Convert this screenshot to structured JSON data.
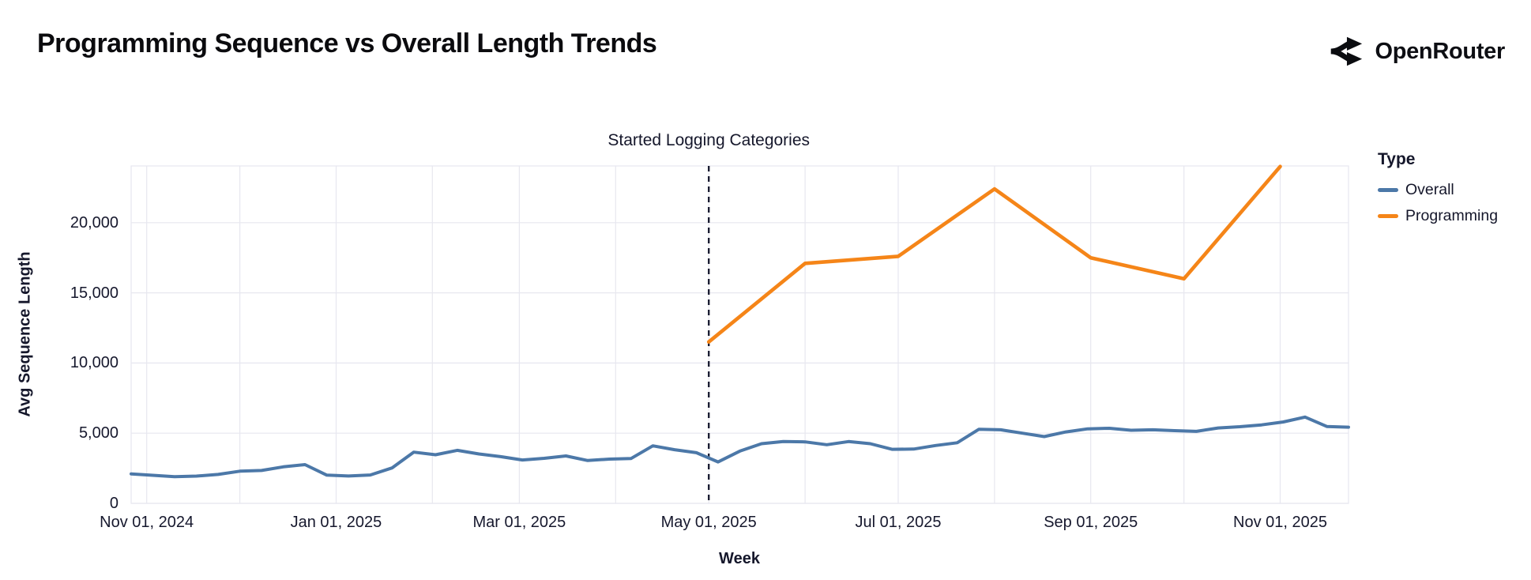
{
  "header": {
    "title": "Programming Sequence vs Overall Length Trends",
    "brand": {
      "name": "OpenRouter",
      "logo_icon": "openrouter-fork-icon"
    }
  },
  "chart_data": {
    "type": "line",
    "title": "Programming Sequence vs Overall Length Trends",
    "xlabel": "Week",
    "ylabel": "Avg Sequence Length",
    "x_domain": [
      "2024-10-27",
      "2025-11-23"
    ],
    "ylim": [
      0,
      24040
    ],
    "grid": true,
    "yticks": [
      {
        "value": 0,
        "label": "0"
      },
      {
        "value": 5000,
        "label": "5,000"
      },
      {
        "value": 10000,
        "label": "10,000"
      },
      {
        "value": 15000,
        "label": "15,000"
      },
      {
        "value": 20000,
        "label": "20,000"
      }
    ],
    "xticks": [
      {
        "date": "2024-11-01",
        "label": "Nov 01, 2024"
      },
      {
        "date": "2025-01-01",
        "label": "Jan 01, 2025"
      },
      {
        "date": "2025-03-01",
        "label": "Mar 01, 2025"
      },
      {
        "date": "2025-05-01",
        "label": "May 01, 2025"
      },
      {
        "date": "2025-07-01",
        "label": "Jul 01, 2025"
      },
      {
        "date": "2025-09-01",
        "label": "Sep 01, 2025"
      },
      {
        "date": "2025-11-01",
        "label": "Nov 01, 2025"
      }
    ],
    "month_gridlines": [
      "2024-11-01",
      "2024-12-01",
      "2025-01-01",
      "2025-02-01",
      "2025-03-01",
      "2025-04-01",
      "2025-05-01",
      "2025-06-01",
      "2025-07-01",
      "2025-08-01",
      "2025-09-01",
      "2025-10-01",
      "2025-11-01"
    ],
    "annotation": {
      "label": "Started Logging Categories",
      "date": "2025-05-01",
      "style": "dashed-vertical-rule",
      "rule_color": "#1c1e33"
    },
    "legend": {
      "title": "Type",
      "position": "right",
      "items": [
        {
          "label": "Overall",
          "color": "#4c78a8"
        },
        {
          "label": "Programming",
          "color": "#f58518"
        }
      ]
    },
    "series": [
      {
        "name": "Overall",
        "color": "#4c78a8",
        "x": [
          "2024-10-27",
          "2024-11-03",
          "2024-11-10",
          "2024-11-17",
          "2024-11-24",
          "2024-12-01",
          "2024-12-08",
          "2024-12-15",
          "2024-12-22",
          "2024-12-29",
          "2025-01-05",
          "2025-01-12",
          "2025-01-19",
          "2025-01-26",
          "2025-02-02",
          "2025-02-09",
          "2025-02-16",
          "2025-02-23",
          "2025-03-02",
          "2025-03-09",
          "2025-03-16",
          "2025-03-23",
          "2025-03-30",
          "2025-04-06",
          "2025-04-13",
          "2025-04-20",
          "2025-04-27",
          "2025-05-04",
          "2025-05-11",
          "2025-05-18",
          "2025-05-25",
          "2025-06-01",
          "2025-06-08",
          "2025-06-15",
          "2025-06-22",
          "2025-06-29",
          "2025-07-06",
          "2025-07-13",
          "2025-07-20",
          "2025-07-27",
          "2025-08-03",
          "2025-08-10",
          "2025-08-17",
          "2025-08-24",
          "2025-08-31",
          "2025-09-07",
          "2025-09-14",
          "2025-09-21",
          "2025-09-28",
          "2025-10-05",
          "2025-10-12",
          "2025-10-19",
          "2025-10-26",
          "2025-11-02",
          "2025-11-09",
          "2025-11-16",
          "2025-11-23"
        ],
        "values": [
          2100,
          2000,
          1900,
          1940,
          2060,
          2290,
          2340,
          2600,
          2760,
          2010,
          1950,
          2020,
          2520,
          3650,
          3460,
          3780,
          3520,
          3330,
          3090,
          3210,
          3380,
          3050,
          3150,
          3200,
          4100,
          3820,
          3610,
          2950,
          3720,
          4250,
          4400,
          4380,
          4180,
          4400,
          4250,
          3850,
          3870,
          4120,
          4320,
          5280,
          5240,
          5000,
          4760,
          5090,
          5310,
          5350,
          5210,
          5240,
          5180,
          5130,
          5370,
          5460,
          5590,
          5800,
          6150,
          5480,
          5430
        ]
      },
      {
        "name": "Programming",
        "color": "#f58518",
        "x": [
          "2025-05-01",
          "2025-06-01",
          "2025-07-01",
          "2025-08-01",
          "2025-09-01",
          "2025-10-01",
          "2025-11-01"
        ],
        "values": [
          11500,
          17100,
          17600,
          22400,
          17500,
          16000,
          24000
        ]
      }
    ]
  }
}
